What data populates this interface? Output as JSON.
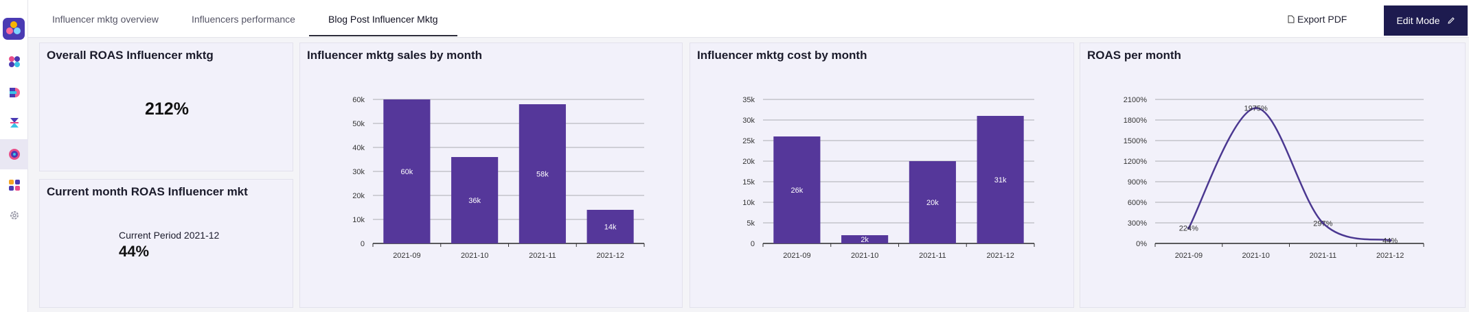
{
  "tabs": [
    "Influencer mktg overview",
    "Influencers performance",
    "Blog Post Influencer Mktg"
  ],
  "actions": {
    "export": "Export PDF",
    "edit": "Edit Mode",
    "close": "✕"
  },
  "cards": {
    "overall": {
      "title": "Overall ROAS Influencer mktg",
      "value": "212%"
    },
    "current": {
      "title": "Current month ROAS Influencer mkt",
      "period_label": "Current Period 2021-12",
      "value": "44%"
    }
  },
  "colors": {
    "bar": "#55379a",
    "line": "#4b3891",
    "grid": "#cfcfd6",
    "accent": "#1d1b4f"
  },
  "icons": [
    "logo-icon",
    "dashboard-icon",
    "data-icon",
    "hourglass-icon",
    "target-icon",
    "apps-icon",
    "settings-icon"
  ],
  "chart_data": [
    {
      "type": "bar",
      "title": "Influencer mktg sales by month",
      "categories": [
        "2021-09",
        "2021-10",
        "2021-11",
        "2021-12"
      ],
      "values": [
        60000,
        36000,
        58000,
        14000
      ],
      "data_labels": [
        "60k",
        "36k",
        "58k",
        "14k"
      ],
      "yticks": [
        "0",
        "10k",
        "20k",
        "30k",
        "40k",
        "50k",
        "60k"
      ],
      "ylim": [
        0,
        60000
      ],
      "grid": true
    },
    {
      "type": "bar",
      "title": "Influencer mktg cost by month",
      "categories": [
        "2021-09",
        "2021-10",
        "2021-11",
        "2021-12"
      ],
      "values": [
        26000,
        2000,
        20000,
        31000
      ],
      "data_labels": [
        "26k",
        "2k",
        "20k",
        "31k"
      ],
      "yticks": [
        "0",
        "5k",
        "10k",
        "15k",
        "20k",
        "25k",
        "30k",
        "35k"
      ],
      "ylim": [
        0,
        35000
      ],
      "grid": true
    },
    {
      "type": "line",
      "title": "ROAS per month",
      "categories": [
        "2021-09",
        "2021-10",
        "2021-11",
        "2021-12"
      ],
      "values": [
        224,
        1975,
        297,
        44
      ],
      "data_labels": [
        "224%",
        "1975%",
        "297%",
        "44%"
      ],
      "yticks": [
        "0%",
        "300%",
        "600%",
        "900%",
        "1200%",
        "1500%",
        "1800%",
        "2100%"
      ],
      "ylim": [
        0,
        2100
      ],
      "grid": true
    }
  ]
}
